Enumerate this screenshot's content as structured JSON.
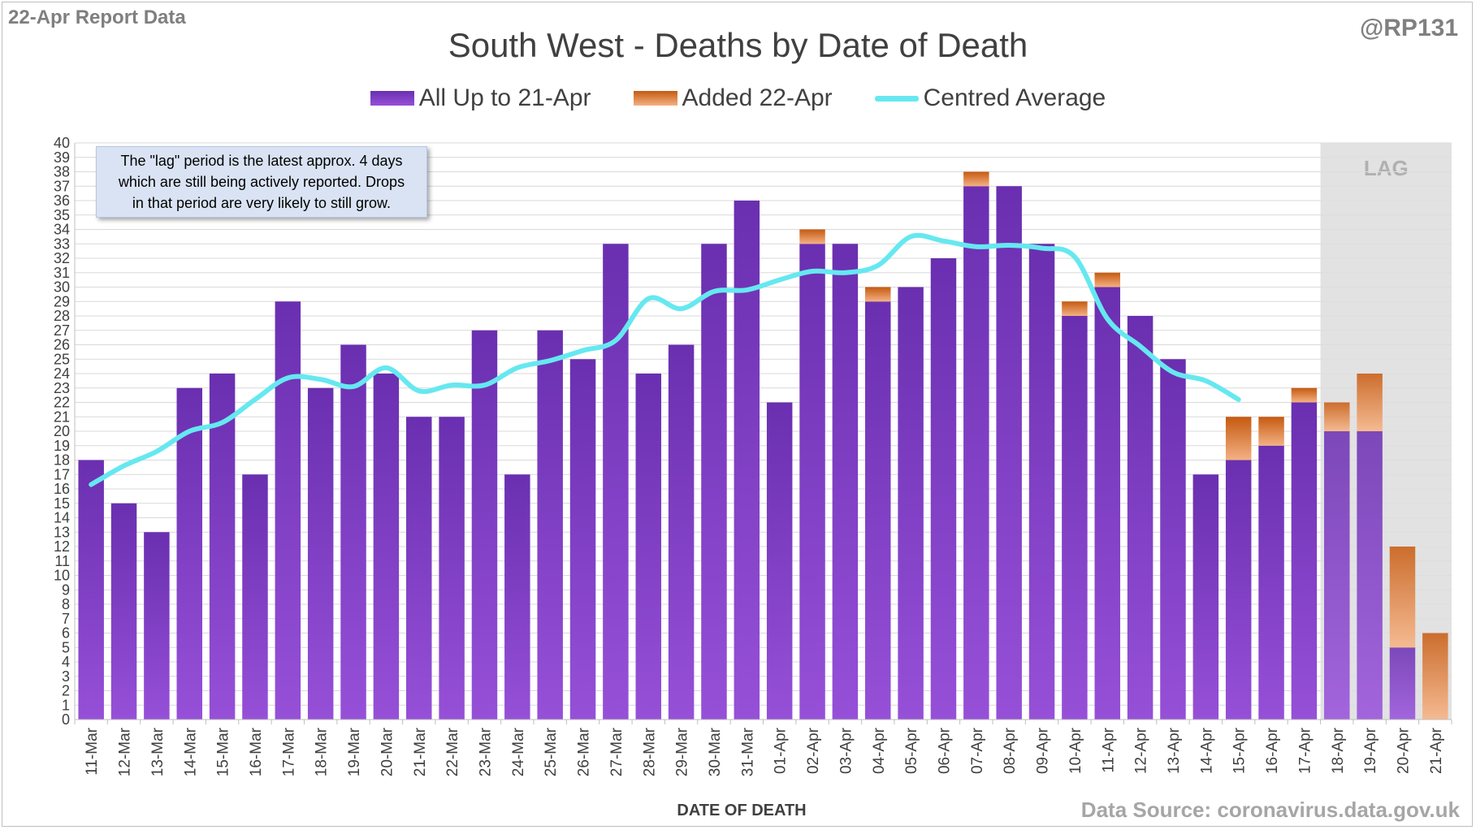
{
  "header": {
    "report_label": "22-Apr Report Data",
    "handle": "@RP131",
    "source": "Data Source: coronavirus.data.gov.uk"
  },
  "legend": {
    "base": "All Up to 21-Apr",
    "added": "Added 22-Apr",
    "average": "Centred Average"
  },
  "note": {
    "line1": "The \"lag\" period is the latest approx. 4 days",
    "line2": "which are still being actively reported.  Drops",
    "line3": "in that period are very likely to still grow."
  },
  "colors": {
    "base_top": "#6a2fb0",
    "base_bottom": "#9650d8",
    "added_top": "#c55a11",
    "added_bottom": "#f4b183",
    "average": "#66e8f0",
    "lag_shade": "#d9d9d9"
  },
  "chart_data": {
    "type": "bar",
    "title": "South West - Deaths by Date of Death",
    "xlabel": "DATE OF DEATH",
    "ylabel": "",
    "ylim": [
      0,
      40
    ],
    "lag_label": "LAG",
    "lag_categories": [
      "18-Apr",
      "19-Apr",
      "20-Apr",
      "21-Apr"
    ],
    "grid": true,
    "legend_position": "top",
    "categories": [
      "11-Mar",
      "12-Mar",
      "13-Mar",
      "14-Mar",
      "15-Mar",
      "16-Mar",
      "17-Mar",
      "18-Mar",
      "19-Mar",
      "20-Mar",
      "21-Mar",
      "22-Mar",
      "23-Mar",
      "24-Mar",
      "25-Mar",
      "26-Mar",
      "27-Mar",
      "28-Mar",
      "29-Mar",
      "30-Mar",
      "31-Mar",
      "01-Apr",
      "02-Apr",
      "03-Apr",
      "04-Apr",
      "05-Apr",
      "06-Apr",
      "07-Apr",
      "08-Apr",
      "09-Apr",
      "10-Apr",
      "11-Apr",
      "12-Apr",
      "13-Apr",
      "14-Apr",
      "15-Apr",
      "16-Apr",
      "17-Apr",
      "18-Apr",
      "19-Apr",
      "20-Apr",
      "21-Apr"
    ],
    "series": [
      {
        "name": "All Up to 21-Apr",
        "values": [
          18,
          15,
          13,
          23,
          24,
          17,
          29,
          23,
          26,
          24,
          21,
          21,
          27,
          17,
          27,
          25,
          33,
          24,
          26,
          33,
          36,
          22,
          33,
          33,
          29,
          30,
          32,
          37,
          37,
          33,
          28,
          30,
          28,
          25,
          17,
          18,
          19,
          22,
          20,
          20,
          5,
          0
        ]
      },
      {
        "name": "Added 22-Apr",
        "values": [
          0,
          0,
          0,
          0,
          0,
          0,
          0,
          0,
          0,
          0,
          0,
          0,
          0,
          0,
          0,
          0,
          0,
          0,
          0,
          0,
          0,
          0,
          1,
          0,
          1,
          0,
          0,
          1,
          0,
          0,
          1,
          1,
          0,
          0,
          0,
          3,
          2,
          1,
          2,
          4,
          7,
          6
        ]
      },
      {
        "name": "Centred Average",
        "values": [
          16.3,
          17.6,
          18.6,
          20,
          20.6,
          22.2,
          23.7,
          23.6,
          23.1,
          24.4,
          22.8,
          23.2,
          23.2,
          24.4,
          24.9,
          25.6,
          26.3,
          29.2,
          28.5,
          29.7,
          29.8,
          30.5,
          31.1,
          31,
          31.5,
          33.5,
          33.2,
          32.8,
          32.9,
          32.7,
          32.1,
          27.8,
          25.9,
          24.1,
          23.5,
          22.2,
          null,
          null,
          null,
          null,
          null,
          null
        ]
      }
    ]
  }
}
